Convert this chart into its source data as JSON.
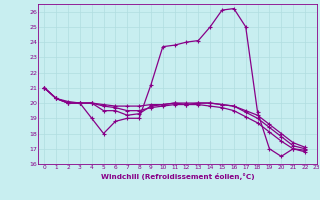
{
  "xlabel": "Windchill (Refroidissement éolien,°C)",
  "background_color": "#c8eef0",
  "grid_color": "#b0dde0",
  "line_color": "#880088",
  "xlim": [
    -0.5,
    23.0
  ],
  "ylim": [
    16,
    26.5
  ],
  "yticks": [
    16,
    17,
    18,
    19,
    20,
    21,
    22,
    23,
    24,
    25,
    26
  ],
  "xticks": [
    0,
    1,
    2,
    3,
    4,
    5,
    6,
    7,
    8,
    9,
    10,
    11,
    12,
    13,
    14,
    15,
    16,
    17,
    18,
    19,
    20,
    21,
    22,
    23
  ],
  "series": [
    [
      21.0,
      20.3,
      20.0,
      20.0,
      19.0,
      18.0,
      18.8,
      19.0,
      19.0,
      21.2,
      23.7,
      23.8,
      24.0,
      24.1,
      25.0,
      26.1,
      26.2,
      25.0,
      19.4,
      17.0,
      16.5,
      17.0,
      16.8
    ],
    [
      21.0,
      20.3,
      20.0,
      20.0,
      20.0,
      19.5,
      19.5,
      19.2,
      19.3,
      19.8,
      19.9,
      20.0,
      19.9,
      20.0,
      20.0,
      19.9,
      19.8,
      19.4,
      19.0,
      18.4,
      17.8,
      17.2,
      17.0
    ],
    [
      21.0,
      20.3,
      20.0,
      20.0,
      20.0,
      19.8,
      19.7,
      19.5,
      19.5,
      19.7,
      19.8,
      19.9,
      19.9,
      19.9,
      19.8,
      19.7,
      19.5,
      19.1,
      18.7,
      18.1,
      17.5,
      17.0,
      16.9
    ],
    [
      21.0,
      20.3,
      20.1,
      20.0,
      20.0,
      19.9,
      19.8,
      19.8,
      19.8,
      19.9,
      19.9,
      20.0,
      20.0,
      20.0,
      20.0,
      19.9,
      19.8,
      19.5,
      19.2,
      18.6,
      18.0,
      17.4,
      17.1
    ]
  ]
}
